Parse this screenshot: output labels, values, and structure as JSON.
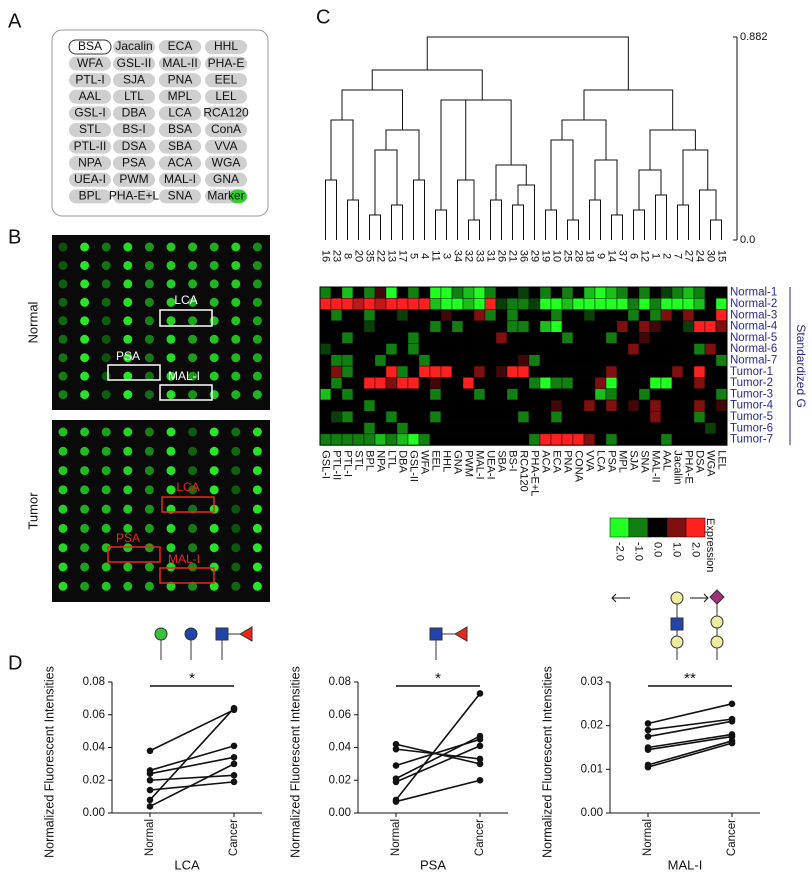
{
  "panel_labels": [
    "A",
    "B",
    "C",
    "D"
  ],
  "panel_a": {
    "spots": [
      [
        "BSA",
        "Jacalin",
        "ECA",
        "HHL"
      ],
      [
        "WFA",
        "GSL-II",
        "MAL-II",
        "PHA-E"
      ],
      [
        "PTL-I",
        "SJA",
        "PNA",
        "EEL"
      ],
      [
        "AAL",
        "LTL",
        "MPL",
        "LEL"
      ],
      [
        "GSL-I",
        "DBA",
        "LCA",
        "RCA120"
      ],
      [
        "STL",
        "BS-I",
        "BSA",
        "ConA"
      ],
      [
        "PTL-II",
        "DSA",
        "SBA",
        "VVA"
      ],
      [
        "NPA",
        "PSA",
        "ACA",
        "WGA"
      ],
      [
        "UEA-I",
        "PWM",
        "MAL-I",
        "GNA"
      ],
      [
        "BPL",
        "PHA-E+L",
        "SNA",
        "Marker"
      ]
    ]
  },
  "panel_b": {
    "arrays": [
      {
        "title": "Normal",
        "boxes": [
          "LCA",
          "PSA",
          "MAL-I"
        ],
        "color": "#ffffff"
      },
      {
        "title": "Tumor",
        "boxes": [
          "LCA",
          "PSA",
          "MAL-I"
        ],
        "color": "#e8261c"
      }
    ]
  },
  "chart_data": [
    {
      "type": "heatmap",
      "x": [
        "GSL-I",
        "PTL-II",
        "PTL-I",
        "STL",
        "BPL",
        "NPA",
        "LTL",
        "DBA",
        "GSL-II",
        "WFA",
        "EEL",
        "HHL",
        "GNA",
        "PWM",
        "MAL-I",
        "UEA-I",
        "SBA",
        "BS-I",
        "RCA120",
        "PHA-E+L",
        "ACA",
        "ECA",
        "PNA",
        "CONA",
        "VVA",
        "LCA",
        "PSA",
        "MPL",
        "SJA",
        "SNA",
        "MAL-II",
        "AAL",
        "Jacalin",
        "PHA-E",
        "DSA",
        "WGA",
        "LEL"
      ],
      "y": [
        "Normal-1",
        "Normal-2",
        "Normal-3",
        "Normal-4",
        "Normal-5",
        "Normal-6",
        "Normal-7",
        "Tumor-1",
        "Tumor-2",
        "Tumor-3",
        "Tumor-4",
        "Tumor-5",
        "Tumor-6",
        "Tumor-7"
      ],
      "values": [
        [
          -1,
          0,
          -1.5,
          0,
          -1,
          0.5,
          -2,
          0,
          -1,
          0,
          -2,
          -2,
          -1,
          -1.5,
          -2,
          -1,
          0,
          0,
          -0.5,
          0,
          -1,
          0,
          -1,
          0,
          -1.5,
          -2,
          -1.5,
          -1,
          0,
          -1,
          0,
          -0.5,
          -1,
          -1.5,
          -1,
          0,
          0
        ],
        [
          2,
          2,
          2,
          1.5,
          2,
          1.5,
          2,
          2,
          2,
          2,
          -1.5,
          -2,
          -2,
          -1.5,
          -2,
          2,
          -0.5,
          -1,
          -1,
          -0.5,
          -2,
          -2,
          -1.5,
          -2,
          -2,
          -2,
          -2,
          -2,
          -1,
          -2,
          -1,
          -2,
          -2,
          -2,
          -1.5,
          0,
          -2
        ],
        [
          0,
          -1,
          0,
          0,
          -1,
          0,
          0,
          -0.5,
          0,
          0,
          0,
          0.5,
          0,
          0,
          1,
          -1,
          0,
          -1,
          0,
          0,
          0,
          -1,
          0,
          0,
          -0.5,
          0,
          0,
          0,
          -1,
          0,
          -1,
          1,
          0,
          1,
          0,
          0,
          2
        ],
        [
          0,
          0,
          0,
          0,
          -0.5,
          0,
          0,
          0,
          0,
          0,
          -1,
          0,
          -1,
          0,
          0,
          0,
          0,
          -1,
          -1,
          0,
          -1.5,
          -2,
          0,
          0,
          0,
          0,
          0,
          1,
          0,
          1,
          0.5,
          0,
          0,
          -0.5,
          2,
          2,
          1
        ],
        [
          0,
          0,
          -1,
          0,
          0,
          0,
          0,
          0,
          -1,
          0,
          0,
          0,
          0,
          0,
          0,
          0,
          1,
          0,
          0,
          0,
          0,
          0,
          -1,
          0,
          0,
          0,
          -1,
          0,
          0,
          0.5,
          0,
          0,
          0,
          0,
          0,
          0,
          0
        ],
        [
          -0.5,
          0,
          0,
          0,
          0,
          0,
          -1,
          0,
          -1,
          0,
          0,
          0,
          0,
          0,
          0,
          0,
          0,
          0,
          0,
          0,
          0,
          0,
          0,
          0,
          0,
          0,
          0,
          0,
          1,
          0,
          0,
          0,
          0,
          0,
          -1,
          1,
          0
        ],
        [
          0,
          -1,
          -1,
          0,
          0,
          -1,
          0,
          0,
          0,
          -1,
          0,
          0,
          0,
          0,
          0,
          0,
          0,
          0,
          0.5,
          -1,
          0,
          0,
          0,
          0,
          0,
          0,
          0,
          0,
          0,
          0,
          0,
          0,
          0,
          0,
          0,
          0,
          -1
        ],
        [
          0,
          1,
          -1,
          0,
          0,
          0,
          2,
          -1,
          0,
          2,
          2,
          2,
          0,
          0,
          1,
          0,
          0.5,
          2,
          2,
          0,
          0,
          0,
          0,
          0,
          0,
          0,
          1,
          0,
          0,
          0,
          0,
          0,
          1,
          0,
          2,
          0,
          0
        ],
        [
          0,
          -1,
          0,
          0,
          2,
          2,
          1,
          2,
          2,
          0,
          0.5,
          0,
          0,
          2,
          0,
          0,
          0,
          0,
          0,
          -1,
          -2,
          -1,
          -1,
          0,
          0,
          1,
          -2,
          0,
          0,
          0,
          -2,
          -2,
          0,
          0,
          1,
          0,
          0
        ],
        [
          -1.5,
          0,
          -1,
          0,
          0,
          0,
          0,
          0,
          0,
          0,
          -1,
          0,
          0,
          0,
          -1,
          0,
          0,
          -1,
          0,
          0,
          0,
          0,
          0,
          0,
          0,
          -1.5,
          -1,
          0,
          0,
          -1,
          0,
          0,
          0,
          0,
          0,
          0,
          -1
        ],
        [
          0,
          0,
          0,
          0,
          -1,
          0,
          0,
          0,
          0,
          0,
          0,
          0,
          0,
          0,
          0,
          0,
          0,
          0,
          0,
          0,
          0,
          0.5,
          0,
          0,
          1,
          0,
          1,
          0,
          0.5,
          0,
          1,
          0,
          0,
          0,
          1,
          0,
          0.5
        ],
        [
          0,
          -0.5,
          -1,
          0,
          0,
          0,
          -1,
          0,
          0,
          0,
          -1,
          0,
          0,
          0,
          0,
          0,
          0,
          0,
          -1,
          0,
          0,
          -1,
          0,
          0,
          0,
          0,
          0,
          0,
          0,
          0,
          1,
          0,
          0,
          0,
          -1,
          0,
          0
        ],
        [
          0,
          0,
          0,
          0,
          -1,
          0,
          0,
          -1,
          0,
          0,
          0,
          0,
          0,
          0,
          0,
          0,
          0,
          0,
          0,
          0,
          0,
          0,
          0,
          0,
          0,
          0,
          0,
          0,
          0,
          0,
          0,
          0,
          0,
          0,
          0,
          -0.5,
          0
        ],
        [
          -1,
          -1,
          -1,
          -1,
          -1,
          -1.5,
          -1,
          -1.5,
          -2,
          -1,
          0,
          0,
          0,
          0,
          0,
          0,
          0,
          0,
          0,
          -1,
          2,
          2,
          2,
          2,
          1,
          0,
          -1,
          0,
          0,
          0,
          0,
          -1,
          0,
          0,
          0,
          0,
          0
        ]
      ],
      "colors": [
        "#22ff22",
        "#000000",
        "#ff2020"
      ],
      "colorbar": {
        "label": "Expression",
        "lim": [
          -2,
          2
        ],
        "ticks": [
          {
            "value": -2,
            "label": "-2.0"
          },
          {
            "value": -1,
            "label": "-1.0"
          },
          {
            "value": 0,
            "label": "0.0"
          },
          {
            "value": 1,
            "label": "1.0"
          },
          {
            "value": 2,
            "label": "2.0"
          }
        ]
      },
      "side_label": "Standardized G",
      "dendrogram": {
        "leaves": [
          16,
          23,
          8,
          20,
          35,
          22,
          13,
          17,
          5,
          4,
          11,
          3,
          34,
          32,
          33,
          31,
          26,
          21,
          36,
          29,
          19,
          10,
          25,
          28,
          18,
          9,
          14,
          37,
          6,
          12,
          1,
          2,
          7,
          27,
          24,
          30,
          15
        ],
        "ylim": [
          0,
          0.882
        ],
        "yticks": [
          {
            "value": 0,
            "label": "0.0"
          },
          0.882
        ]
      }
    },
    {
      "type": "paired",
      "xlabel": "LCA",
      "ylabel": "Normalized Fluorescent Intensities",
      "significance": "*",
      "categories": [
        "Normal",
        "Cancer"
      ],
      "ylim": [
        0,
        0.08
      ],
      "yticks": [
        {
          "value": 0,
          "label": "0.00"
        },
        {
          "value": 0.02,
          "label": "0.02"
        },
        {
          "value": 0.04,
          "label": "0.04"
        },
        {
          "value": 0.06,
          "label": "0.06"
        },
        {
          "value": 0.08,
          "label": "0.08"
        }
      ],
      "series": [
        {
          "values": [
            0.038,
            0.063
          ]
        },
        {
          "values": [
            0.026,
            0.041
          ]
        },
        {
          "values": [
            0.024,
            0.034
          ]
        },
        {
          "values": [
            0.02,
            0.023
          ]
        },
        {
          "values": [
            0.014,
            0.019
          ]
        },
        {
          "values": [
            0.008,
            0.064
          ]
        },
        {
          "values": [
            0.004,
            0.03
          ]
        }
      ]
    },
    {
      "type": "paired",
      "xlabel": "PSA",
      "ylabel": "Normalized Fluorescent Intensities",
      "significance": "*",
      "categories": [
        "Normal",
        "Cancer"
      ],
      "ylim": [
        0,
        0.08
      ],
      "yticks": [
        {
          "value": 0,
          "label": "0.00"
        },
        {
          "value": 0.02,
          "label": "0.02"
        },
        {
          "value": 0.04,
          "label": "0.04"
        },
        {
          "value": 0.06,
          "label": "0.06"
        },
        {
          "value": 0.08,
          "label": "0.08"
        }
      ],
      "series": [
        {
          "values": [
            0.042,
            0.03
          ]
        },
        {
          "values": [
            0.039,
            0.033
          ]
        },
        {
          "values": [
            0.029,
            0.045
          ]
        },
        {
          "values": [
            0.021,
            0.047
          ]
        },
        {
          "values": [
            0.019,
            0.041
          ]
        },
        {
          "values": [
            0.008,
            0.073
          ]
        },
        {
          "values": [
            0.007,
            0.02
          ]
        }
      ]
    },
    {
      "type": "paired",
      "xlabel": "MAL-I",
      "ylabel": "Normalized Fluorescent Intensities",
      "significance": "**",
      "categories": [
        "Normal",
        "Cancer"
      ],
      "ylim": [
        0,
        0.03
      ],
      "yticks": [
        {
          "value": 0,
          "label": "0.00"
        },
        {
          "value": 0.01,
          "label": "0.01"
        },
        {
          "value": 0.02,
          "label": "0.02"
        },
        {
          "value": 0.03,
          "label": "0.03"
        }
      ],
      "series": [
        {
          "values": [
            0.0205,
            0.025
          ]
        },
        {
          "values": [
            0.019,
            0.0215
          ]
        },
        {
          "values": [
            0.0175,
            0.021
          ]
        },
        {
          "values": [
            0.015,
            0.018
          ]
        },
        {
          "values": [
            0.0145,
            0.0175
          ]
        },
        {
          "values": [
            0.011,
            0.0165
          ]
        },
        {
          "values": [
            0.0105,
            0.016
          ]
        }
      ]
    }
  ]
}
